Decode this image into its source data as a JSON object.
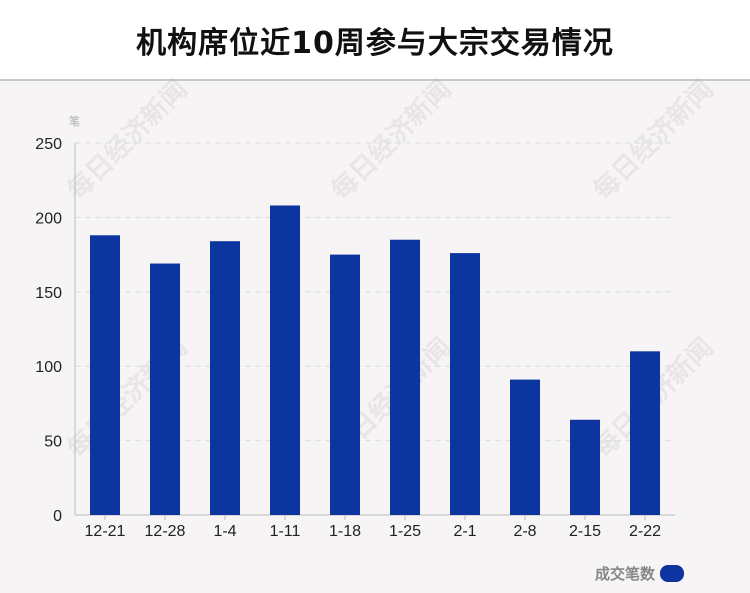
{
  "title": "机构席位近10周参与大宗交易情况",
  "watermark": "每日经济新闻",
  "legend": {
    "label": "成交笔数"
  },
  "chart_data": {
    "type": "bar",
    "title": "机构席位近10周参与大宗交易情况",
    "ylabel": "笔",
    "xlabel": "",
    "categories": [
      "12-21",
      "12-28",
      "1-4",
      "1-11",
      "1-18",
      "1-25",
      "2-1",
      "2-8",
      "2-15",
      "2-22"
    ],
    "series": [
      {
        "name": "成交笔数",
        "values": [
          188,
          169,
          184,
          208,
          175,
          185,
          176,
          91,
          64,
          110
        ]
      }
    ],
    "ylim": [
      0,
      250
    ],
    "yticks": [
      0,
      50,
      100,
      150,
      200,
      250
    ],
    "grid": true,
    "legend_position": "bottom-right",
    "bar_color": "#0c35a0"
  }
}
